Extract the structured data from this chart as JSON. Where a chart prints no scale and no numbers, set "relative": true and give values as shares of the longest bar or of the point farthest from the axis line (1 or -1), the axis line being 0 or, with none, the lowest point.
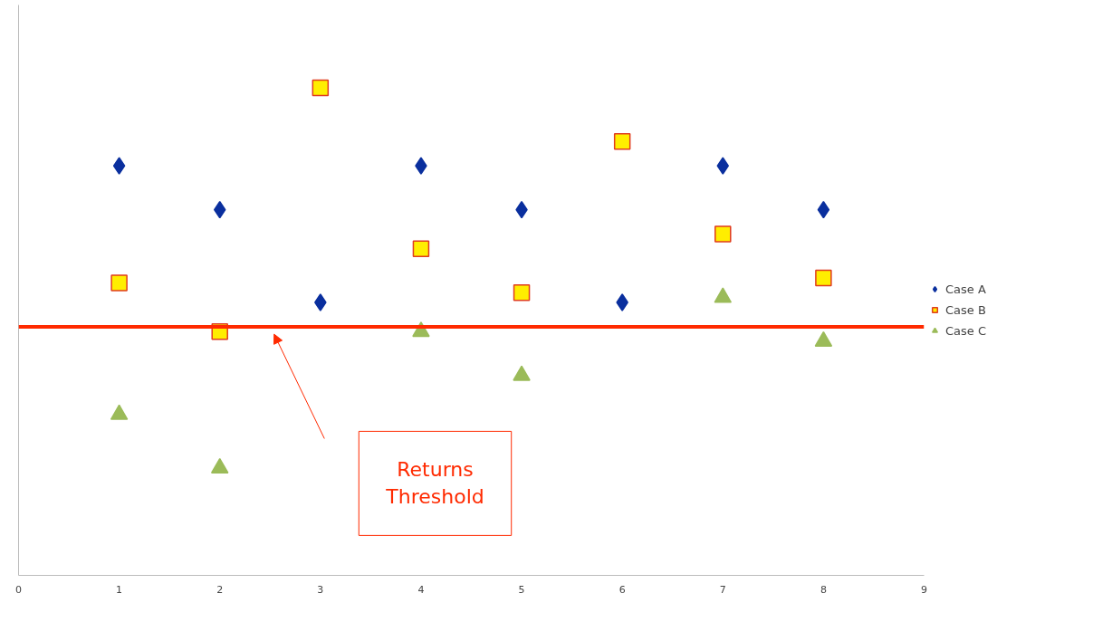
{
  "chart_data": {
    "type": "scatter",
    "relative": true,
    "x": [
      1,
      2,
      3,
      4,
      5,
      6,
      7,
      8
    ],
    "xlim": [
      0,
      9
    ],
    "xticks": [
      0,
      1,
      2,
      3,
      4,
      5,
      6,
      7,
      8,
      9
    ],
    "tick_labels": "x",
    "grid": false,
    "legend": "right",
    "series": [
      {
        "name": "Case A",
        "color": "#0a2f9e",
        "marker": "diamond",
        "values": [
          0.84,
          0.75,
          0.56,
          0.84,
          0.75,
          0.56,
          0.84,
          0.75
        ]
      },
      {
        "name": "Case B",
        "color": "#ffee00",
        "marker": "square",
        "values": [
          0.6,
          0.5,
          1,
          0.67,
          0.58,
          0.89,
          0.7,
          0.61
        ]
      },
      {
        "name": "Case C",
        "color": "#9bbb59",
        "marker": "triangle",
        "values": [
          0.33,
          0.22,
          null,
          0.5,
          0.41,
          null,
          0.57,
          0.48
        ]
      }
    ],
    "ref_lines": [
      {
        "axis": "y",
        "value": 0.51,
        "label": "Returns Threshold",
        "color": "#ff2a00"
      }
    ]
  }
}
